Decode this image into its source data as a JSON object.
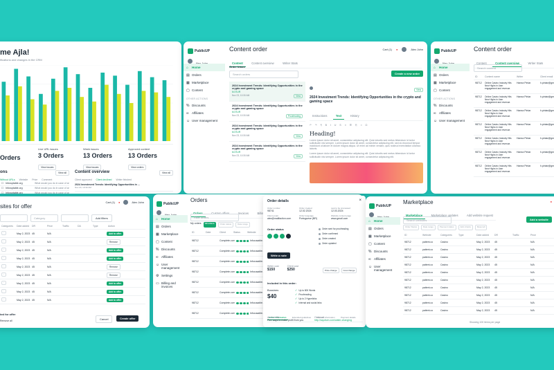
{
  "brand": "PublicUP",
  "user": "Alex John",
  "cart": "Cart (1)",
  "greeting": "me Ajla!",
  "greeting_sub": "ifications and changes in the CRM",
  "stats": [
    {
      "label": "Live URL issues",
      "value": "3 Orders",
      "link": "View issues"
    },
    {
      "label": "Week issues",
      "value": "13 Orders",
      "link": "View issues"
    },
    {
      "label": "Approved content",
      "value": "13 Orders",
      "link": "View orders"
    }
  ],
  "stats_prefix": "Orders",
  "content_overview": {
    "title": "Content overview",
    "view_all": "View all",
    "tabs": [
      "Client approved",
      "Client declined",
      "Writer finished"
    ],
    "items": [
      {
        "title": "2024 Investment Trends: Identifying Opportunities in ...",
        "date": "Nov 23, 10:30 AM"
      },
      {
        "title": "2024 Investment Trends: Identifying Opportunities in ...",
        "date": "Nov 23, 10:30 AM"
      },
      {
        "title": "2024 Investment Trends: Identifying Opportunities in ...",
        "date": "Nov 23, 10:30 AM"
      }
    ]
  },
  "left_list": {
    "title": "ons",
    "view_all": "View all",
    "tabs": [
      "Without URLs",
      "Website",
      "Price",
      "Date",
      "Comment"
    ],
    "rows": [
      {
        "site": "Inforuptable.org",
        "comment": "What would you do in case of an..."
      },
      {
        "site": "Inforuptable.org",
        "comment": "What would you do in case of an..."
      },
      {
        "site": "Inforuptable.org",
        "comment": "What would you do in case of an..."
      },
      {
        "site": "Inforuptable.org",
        "comment": "What would you do in case of an..."
      }
    ]
  },
  "nav": {
    "items": [
      "Home",
      "Orders",
      "Marketplace",
      "Content"
    ],
    "other_label": "OTHER ACTIONS",
    "other": [
      "Discounts",
      "Affiliates",
      "User management"
    ]
  },
  "content_order": {
    "title": "Content order",
    "tabs": [
      "Content",
      "Content overview",
      "Writer Stats"
    ],
    "inbox_title": "Order Inbox",
    "search": "Search orders",
    "create_btn": "Create a new order",
    "orders": [
      {
        "title": "2024 Investment Trends: Identifying Opportunities in the crypto and gaming space",
        "price": "64 EUR",
        "date": "Nov 23, 10:30 AM",
        "tag": "View"
      },
      {
        "title": "2024 Investment Trends: Identifying Opportunities in the crypto and gaming space",
        "price": "64 EUR",
        "date": "Nov 23, 10:30 AM",
        "tag": "Proofreading"
      },
      {
        "title": "2024 Investment Trends: Identifying Opportunities in the crypto and gaming space",
        "price": "64 EUR",
        "date": "Nov 23, 10:30 AM",
        "tag": "View"
      },
      {
        "title": "2024 Investment Trends: Identifying Opportunities in the crypto and gaming space",
        "price": "64 EUR",
        "date": "Nov 23, 10:30 AM",
        "tag": "View"
      }
    ],
    "detail_title": "2024 Investment Trends: Identifying Opportunities in the crypto and gaming space",
    "detail_tabs": [
      "Instructions",
      "Text",
      "History"
    ],
    "heading": "Heading!",
    "body": "Lorem ipsum dolor sit amet, consectetur adipiscing elit. Quis lobortis sed metus bibendum id tortor sollicitudin nisi semper. Lorem ipsum dolor sit amet, consectetur adipiscing elit, sed do eiusmod tempor incididunt ut labore et dolore magna aliqua. Ut enim ad minim veniam, quis nostrud exercitation ullamco laboris.",
    "body2": "Lorem ipsum dolor sit amet, consectetur adipiscing elit. Quis lobortis sed metus bibendum id tortor sollicitudin nisi semper. Lorem ipsum dolor sit amet, consectetur adipiscing elit."
  },
  "content_overview_page": {
    "title": "Content order",
    "tabs": [
      "Content",
      "Content overview",
      "Writer Stats"
    ],
    "search": "Search content",
    "columns": [
      "ID",
      "Content name",
      "Writer",
      "Client email"
    ],
    "rows": [
      {
        "id": "98712",
        "name": "Online Casino Industry Hits New Highs in User engagement and revenue.",
        "writer": "Hanna Pintar",
        "email": "h.pintar@gmail.com"
      },
      {
        "id": "98712",
        "name": "Online Casino Industry Hits New Highs in User engagement and revenue.",
        "writer": "Hanna Pintar",
        "email": "h.pintar@gmail.com"
      },
      {
        "id": "98712",
        "name": "Online Casino Industry Hits New Highs in User engagement and revenue.",
        "writer": "Hanna Pintar",
        "email": "h.pintar@gmail.com"
      },
      {
        "id": "98712",
        "name": "Online Casino Industry Hits New Highs in User engagement and revenue.",
        "writer": "Hanna Pintar",
        "email": "h.pintar@gmail.com"
      },
      {
        "id": "98712",
        "name": "Online Casino Industry Hits New Highs in User engagement and revenue.",
        "writer": "Hanna Pintar",
        "email": "h.pintar@gmail.com"
      },
      {
        "id": "98712",
        "name": "Online Casino Industry Hits New Highs in User engagement and revenue.",
        "writer": "Hanna Pintar",
        "email": "h.pintar@gmail.com"
      },
      {
        "id": "98712",
        "name": "Online Casino Industry Hits New Highs in User engagement and revenue.",
        "writer": "Hanna Pintar",
        "email": "h.pintar@gmail.com"
      }
    ]
  },
  "sites_offer": {
    "title": "sites for offer",
    "category": "Category",
    "add_filters": "Add filters",
    "columns": [
      "Categories",
      "Date added",
      "DR",
      "Price",
      "Traffic",
      "DA",
      "Type",
      "Action"
    ],
    "rows": [
      {
        "date": "May 2, 2023",
        "dr": "45",
        "price": "N/A",
        "action": "Add to offer"
      },
      {
        "date": "May 2, 2023",
        "dr": "45",
        "price": "N/A",
        "action": "Remove"
      },
      {
        "date": "May 2, 2023",
        "dr": "45",
        "price": "N/A",
        "action": "Add to offer"
      },
      {
        "date": "May 2, 2023",
        "dr": "45",
        "price": "N/A",
        "action": "Add to offer"
      },
      {
        "date": "May 2, 2023",
        "dr": "45",
        "price": "N/A",
        "action": "Remove"
      },
      {
        "date": "May 2, 2023",
        "dr": "45",
        "price": "N/A",
        "action": "Remove"
      },
      {
        "date": "May 2, 2023",
        "dr": "45",
        "price": "N/A",
        "action": "Add to offer"
      },
      {
        "date": "May 2, 2023",
        "dr": "45",
        "price": "N/A",
        "action": "Add to offer"
      },
      {
        "date": "May 2, 2023",
        "dr": "45",
        "price": "N/A",
        "action": "Add to offer"
      }
    ],
    "selected_label": "ted for offer",
    "remove_all": "Remove all",
    "cancel": "Cancel",
    "create": "Create offer"
  },
  "orders_page": {
    "title": "Orders",
    "tabs": [
      "Orders",
      "Custom offers",
      "Invoices",
      "Billing and payments"
    ],
    "search": "Filter orders",
    "filters": [
      "My orders",
      "All orders",
      "Order status",
      "Date range"
    ],
    "columns": [
      "ID",
      "Date",
      "Client",
      "Status",
      "Website"
    ],
    "rows": [
      {
        "id": "98712",
        "client": "Complete.com",
        "website": "Infocusable.org"
      },
      {
        "id": "98712",
        "client": "Complete.com",
        "website": "Infocusable.org"
      },
      {
        "id": "98712",
        "client": "Complete.com",
        "website": "Infocusable.org"
      },
      {
        "id": "98712",
        "client": "Complete.com",
        "website": "Infocusable.org"
      },
      {
        "id": "98712",
        "client": "Complete.com",
        "website": "Infocusable.org"
      },
      {
        "id": "98712",
        "client": "Complete.com",
        "website": "Infocusable.org"
      },
      {
        "id": "98712",
        "client": "Complete.com",
        "website": "Infocusable.org"
      },
      {
        "id": "98712",
        "client": "Complete.com",
        "website": "Infocusable.org"
      }
    ],
    "nav_extra": [
      "Settings",
      "Billing and invoices"
    ]
  },
  "order_details": {
    "title": "Order details",
    "fields": [
      {
        "label": "Order number",
        "value": "98741"
      },
      {
        "label": "Order created",
        "value": "12.02.2024"
      },
      {
        "label": "Last to be processed",
        "value": "12.03.2024"
      },
      {
        "label": "Client email",
        "value": "alex@mailfaction.com"
      },
      {
        "label": "Order language",
        "value": "Portuguese (BR)"
      },
      {
        "label": "Website content page",
        "value": "www.gmail.com"
      }
    ],
    "status_title": "Order status",
    "steps": [
      "Order sent for proofreading",
      "Order confirmed",
      "Order created",
      "Order updated"
    ],
    "write_btn": "Write a note",
    "prices": [
      {
        "label": "Writer cost",
        "value": "$150"
      },
      {
        "label": "Client cost",
        "value": "$250"
      }
    ],
    "change_price": "Price change",
    "cost_change": "Cost change",
    "included_title": "Included in this order:",
    "package": "Bussines",
    "package_price": "$40",
    "included": [
      "Up to 800 Words",
      "Proofreading",
      "Up to 2 Hyperlinks",
      "Internal and social links"
    ],
    "tabs": [
      "Order information",
      "Extended guidelines",
      "Content information",
      "Payment details"
    ],
    "anchor_label": "Anchor title",
    "anchor": "Five ways to make profit from you",
    "link_label": "Order url",
    "link": "http://aqurium.com/water-changing"
  },
  "marketplace": {
    "title": "Marketplace",
    "tabs": [
      "Marketplace",
      "Marketplace updates",
      "Add website request"
    ],
    "search": "Search websites",
    "filters": [
      "Order Status",
      "Date range",
      "Payment status",
      "Add criteria",
      "Reset all"
    ],
    "add_btn": "Add a website",
    "columns": [
      "ID",
      "Website",
      "Categories",
      "Type",
      "Date added",
      "DR",
      "Traffic",
      "Price"
    ],
    "rows": [
      {
        "id": "98712",
        "site": "patient.co",
        "cat": "Casino",
        "date": "May 2, 2023",
        "dr": "45",
        "price": "N/A"
      },
      {
        "id": "98712",
        "site": "patient.co",
        "cat": "Casino",
        "date": "May 2, 2023",
        "dr": "45",
        "price": "N/A"
      },
      {
        "id": "98712",
        "site": "patient.co",
        "cat": "Casino",
        "date": "May 2, 2023",
        "dr": "45",
        "price": "N/A"
      },
      {
        "id": "98712",
        "site": "patient.co",
        "cat": "Casino",
        "date": "May 2, 2023",
        "dr": "45",
        "price": "N/A"
      },
      {
        "id": "98712",
        "site": "patient.co",
        "cat": "Casino",
        "date": "May 2, 2023",
        "dr": "45",
        "price": "N/A"
      },
      {
        "id": "98712",
        "site": "patient.co",
        "cat": "Casino",
        "date": "May 2, 2023",
        "dr": "45",
        "price": "N/A"
      },
      {
        "id": "98712",
        "site": "patient.co",
        "cat": "Casino",
        "date": "May 2, 2023",
        "dr": "45",
        "price": "N/A"
      },
      {
        "id": "98712",
        "site": "patient.co",
        "cat": "Casino",
        "date": "May 2, 2023",
        "dr": "45",
        "price": "N/A"
      },
      {
        "id": "98712",
        "site": "patient.co",
        "cat": "Casino",
        "date": "May 2, 2023",
        "dr": "45",
        "price": "N/A"
      },
      {
        "id": "98712",
        "site": "patient.co",
        "cat": "Casino",
        "date": "May 2, 2023",
        "dr": "45",
        "price": "N/A"
      }
    ],
    "footer": "Showing 100 items per page"
  },
  "colors": {
    "accent": "#13a86e",
    "background": "#23c9bd",
    "bar_a": "#1bb8a8",
    "bar_b": "#d6e325"
  },
  "bar_chart": {
    "series": [
      [
        0.78,
        0.95,
        0.85,
        0.62,
        0.82,
        0.97,
        0.88,
        0.7,
        0.9,
        0.86,
        0.74,
        0.92,
        0.84,
        0.8
      ],
      [
        0.6,
        0.72,
        0.55,
        0.48,
        0.66,
        0.7,
        0.58,
        0.52,
        0.74,
        0.62,
        0.5,
        0.66,
        0.64,
        0.58
      ]
    ]
  }
}
